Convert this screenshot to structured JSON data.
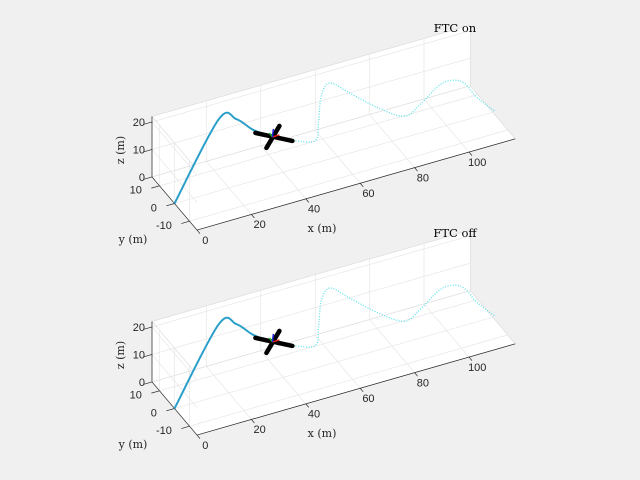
{
  "chart_data": [
    {
      "type": "line",
      "title": "FTC on",
      "xlabel": "x (m)",
      "ylabel": "y (m)",
      "zlabel": "z (m)",
      "xlim": [
        0,
        117
      ],
      "ylim": [
        -15,
        15
      ],
      "zlim": [
        0,
        22
      ],
      "xticks": [
        "0",
        "20",
        "40",
        "60",
        "80",
        "100"
      ],
      "yticks": [
        "10",
        "0",
        "-10"
      ],
      "zticks": [
        "0",
        "10",
        "20"
      ],
      "grid": true,
      "series": [
        {
          "style": "solid",
          "color": "#2a9fc9",
          "x": [
            0,
            19,
            25,
            30,
            36
          ],
          "y": [
            0,
            5,
            4,
            2,
            0
          ],
          "z": [
            0,
            22,
            21,
            17,
            14
          ]
        },
        {
          "style": "dotted",
          "color": "#5fe3ea",
          "x": [
            36,
            43,
            51.7,
            53,
            54,
            57.2,
            64.5,
            75.6,
            84.7,
            90.3,
            97.6,
            103.1,
            107,
            110.5,
            114,
            118
          ],
          "y": [
            0,
            0,
            0,
            0,
            0,
            0,
            0,
            0,
            0,
            0,
            0,
            0,
            0,
            0,
            0,
            0
          ],
          "z": [
            14,
            10.8,
            8.2,
            15,
            24,
            27.6,
            21.8,
            13,
            7.7,
            10.4,
            15.5,
            15.6,
            13,
            7.9,
            4,
            0
          ]
        }
      ],
      "vehicle": {
        "x": 36,
        "y": 0,
        "z": 14
      }
    },
    {
      "type": "line",
      "title": "FTC off",
      "xlabel": "x (m)",
      "ylabel": "y (m)",
      "zlabel": "z (m)",
      "xlim": [
        0,
        117
      ],
      "ylim": [
        -15,
        15
      ],
      "zlim": [
        0,
        22
      ],
      "xticks": [
        "0",
        "20",
        "40",
        "60",
        "80",
        "100"
      ],
      "yticks": [
        "10",
        "0",
        "-10"
      ],
      "zticks": [
        "0",
        "10",
        "20"
      ],
      "grid": true,
      "series": [
        {
          "style": "solid",
          "color": "#2a9fc9",
          "x": [
            0,
            19,
            25,
            30,
            36
          ],
          "y": [
            0,
            5,
            4,
            2,
            0
          ],
          "z": [
            0,
            22,
            21,
            17,
            14
          ]
        },
        {
          "style": "dotted",
          "color": "#5fe3ea",
          "x": [
            36,
            43,
            51.7,
            53,
            54,
            57.2,
            64.5,
            75.6,
            84.7,
            90.3,
            97.6,
            103.1,
            107,
            110.5,
            114,
            118
          ],
          "y": [
            0,
            0,
            0,
            0,
            0,
            0,
            0,
            0,
            0,
            0,
            0,
            0,
            0,
            0,
            0,
            0
          ],
          "z": [
            14,
            10.8,
            8.2,
            15,
            24,
            27.6,
            21.8,
            13,
            7.7,
            10.4,
            15.5,
            15.6,
            13,
            7.9,
            4,
            0
          ]
        }
      ],
      "vehicle": {
        "x": 36,
        "y": 0,
        "z": 14
      }
    }
  ]
}
